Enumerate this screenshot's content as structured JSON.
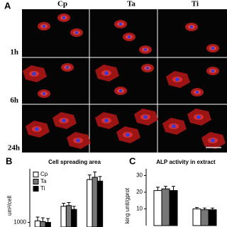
{
  "panel_a": {
    "label": "A",
    "columns": [
      "Cp",
      "Ta",
      "Ti"
    ],
    "rows": [
      "1h",
      "6h",
      "24h"
    ]
  },
  "chart_data": [
    {
      "type": "bar",
      "panel_label": "B",
      "title": "Cell spreading area",
      "y_label": "um²/cell",
      "categories": [
        null,
        null,
        null
      ],
      "series": [
        {
          "name": "Cp",
          "color": "#ffffff",
          "values": [
            1100,
            2050,
            3800
          ],
          "errors": [
            250,
            200,
            300
          ]
        },
        {
          "name": "Ta",
          "color": "#777777",
          "values": [
            1050,
            2100,
            3950
          ],
          "errors": [
            250,
            200,
            350
          ]
        },
        {
          "name": "Ti",
          "color": "#000000",
          "values": [
            1000,
            1850,
            3700
          ],
          "errors": [
            250,
            200,
            300
          ]
        }
      ],
      "ylim": [
        700,
        4500
      ],
      "yticks": [
        1000
      ],
      "legend": "upper left"
    },
    {
      "type": "bar",
      "panel_label": "C",
      "title": "ALP activity in extract",
      "y_label": "king unit/gprot",
      "categories": [
        null,
        null
      ],
      "series": [
        {
          "name": "Cp",
          "color": "#ffffff",
          "values": [
            21,
            10
          ],
          "errors": [
            2,
            0.8
          ]
        },
        {
          "name": "Ta",
          "color": "#777777",
          "values": [
            22,
            9.5
          ],
          "errors": [
            1.5,
            1
          ]
        },
        {
          "name": "Ti",
          "color": "#000000",
          "values": [
            21,
            9.5
          ],
          "errors": [
            2.5,
            1
          ]
        }
      ],
      "ylim": [
        0,
        34
      ],
      "yticks": [
        10,
        20,
        30
      ],
      "legend": "none"
    }
  ]
}
